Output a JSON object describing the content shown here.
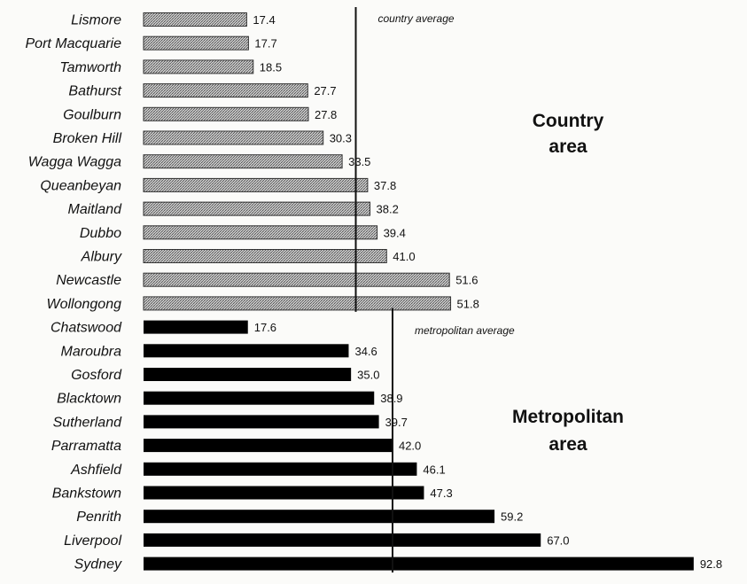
{
  "chart_data": {
    "type": "bar",
    "orientation": "horizontal",
    "groups": [
      {
        "name": "Country area",
        "label_lines": [
          "Country",
          "area"
        ],
        "fill": "hatched",
        "color": "#555555",
        "average_label": "country average",
        "categories": [
          "Lismore",
          "Port Macquarie",
          "Tamworth",
          "Bathurst",
          "Goulburn",
          "Broken Hill",
          "Wagga Wagga",
          "Queanbeyan",
          "Maitland",
          "Dubbo",
          "Albury",
          "Newcastle",
          "Wollongong"
        ],
        "values": [
          17.4,
          17.7,
          18.5,
          27.7,
          27.8,
          30.3,
          33.5,
          37.8,
          38.2,
          39.4,
          41.0,
          51.6,
          51.8
        ],
        "value_labels": [
          "17.4",
          "17.7",
          "18.5",
          "27.7",
          "27.8",
          "30.3",
          "33.5",
          "37.8",
          "38.2",
          "39.4",
          "41.0",
          "51.6",
          "51.8"
        ]
      },
      {
        "name": "Metropolitan area",
        "label_lines": [
          "Metropolitan",
          "area"
        ],
        "fill": "solid",
        "color": "#000000",
        "average_label": "metropolitan average",
        "categories": [
          "Chatswood",
          "Maroubra",
          "Gosford",
          "Blacktown",
          "Sutherland",
          "Parramatta",
          "Ashfield",
          "Bankstown",
          "Penrith",
          "Liverpool",
          "Sydney"
        ],
        "values": [
          17.6,
          34.6,
          35.0,
          38.9,
          39.7,
          42.0,
          46.1,
          47.3,
          59.2,
          67.0,
          92.8
        ],
        "value_labels": [
          "17.6",
          "34.6",
          "35.0",
          "38.9",
          "39.7",
          "42.0",
          "46.1",
          "47.3",
          "59.2",
          "67.0",
          "92.8"
        ]
      }
    ],
    "averages": {
      "country": 35.8,
      "metropolitan": 42.0
    },
    "xlim": [
      0,
      92.8
    ],
    "grid": false,
    "legend": "none"
  }
}
